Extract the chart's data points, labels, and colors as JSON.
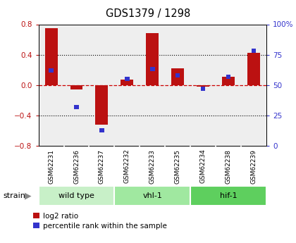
{
  "title": "GDS1379 / 1298",
  "samples": [
    "GSM62231",
    "GSM62236",
    "GSM62237",
    "GSM62232",
    "GSM62233",
    "GSM62235",
    "GSM62234",
    "GSM62238",
    "GSM62239"
  ],
  "log2_ratio": [
    0.75,
    -0.06,
    -0.52,
    0.07,
    0.68,
    0.22,
    -0.02,
    0.11,
    0.42
  ],
  "percentile_rank": [
    62,
    32,
    13,
    55,
    63,
    58,
    47,
    57,
    78
  ],
  "groups": [
    {
      "label": "wild type",
      "start": 0,
      "end": 3,
      "color": "#c8f0c8"
    },
    {
      "label": "vhl-1",
      "start": 3,
      "end": 6,
      "color": "#a0e8a0"
    },
    {
      "label": "hif-1",
      "start": 6,
      "end": 9,
      "color": "#5ecf5e"
    }
  ],
  "ylim_left": [
    -0.8,
    0.8
  ],
  "ylim_right": [
    0,
    100
  ],
  "yticks_left": [
    -0.8,
    -0.4,
    0.0,
    0.4,
    0.8
  ],
  "yticks_right": [
    0,
    25,
    50,
    75,
    100
  ],
  "ytick_labels_right": [
    "0",
    "25",
    "50",
    "75",
    "100%"
  ],
  "bar_color_red": "#bb1111",
  "bar_color_blue": "#3333cc",
  "grid_color": "#000000",
  "zero_line_color": "#cc0000",
  "bg_color": "#ffffff",
  "plot_bg": "#eeeeee",
  "sample_bg": "#cccccc",
  "strain_label": "strain",
  "legend_red": "log2 ratio",
  "legend_blue": "percentile rank within the sample"
}
